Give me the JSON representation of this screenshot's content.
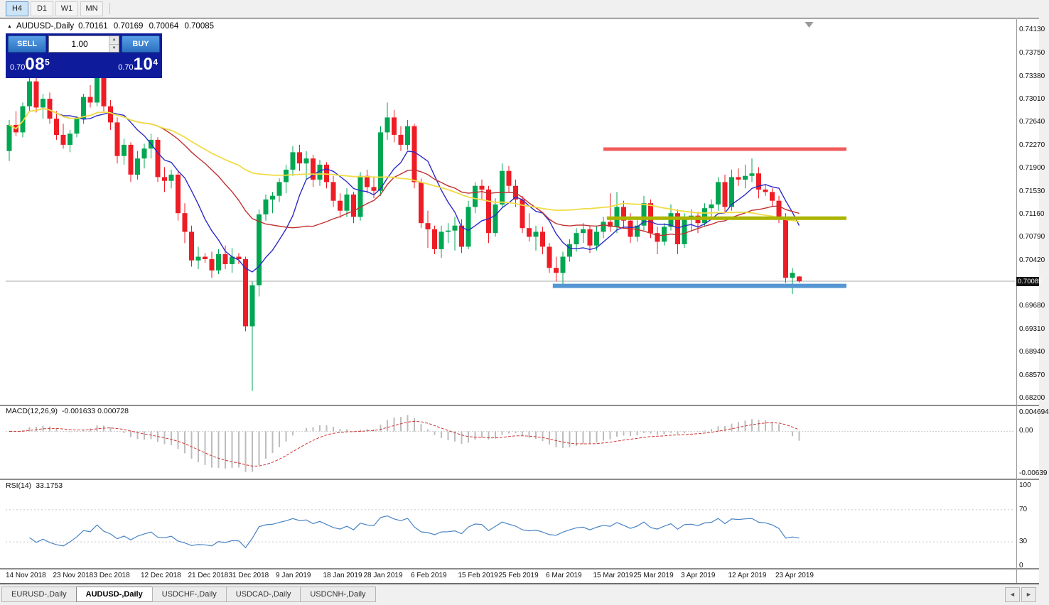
{
  "toolbar": {
    "timeframes": [
      {
        "label": "H4",
        "active": true
      },
      {
        "label": "D1",
        "active": false
      },
      {
        "label": "W1",
        "active": false
      },
      {
        "label": "MN",
        "active": false
      }
    ]
  },
  "chart": {
    "title": "AUDUSD-,Daily",
    "open": "0.70161",
    "high": "0.70169",
    "low": "0.70064",
    "close": "0.70085"
  },
  "trade_panel": {
    "sell_label": "SELL",
    "buy_label": "BUY",
    "volume": "1.00",
    "spinner_up": "▲",
    "spinner_down": "▼",
    "sell_price": {
      "prefix": "0.70",
      "big": "08",
      "sup": "5"
    },
    "buy_price": {
      "prefix": "0.70",
      "big": "10",
      "sup": "4"
    }
  },
  "chart_data": {
    "type": "candlestick",
    "symbol": "AUDUSD-",
    "timeframe": "Daily",
    "current_price": 0.70085,
    "colors": {
      "bull": "#00a651",
      "bear": "#ee1c25"
    },
    "price_scale": {
      "top_price": 0.74267,
      "bottom_price": 0.68143,
      "ticks": [
        "0.74130",
        "0.73750",
        "0.73380",
        "0.73010",
        "0.72640",
        "0.72270",
        "0.71900",
        "0.71530",
        "0.71160",
        "0.70790",
        "0.70420",
        "0.69680",
        "0.69310",
        "0.68940",
        "0.68570",
        "0.68200"
      ]
    },
    "x_labels": [
      {
        "index": 0,
        "text": "14 Nov 2018"
      },
      {
        "index": 7,
        "text": "23 Nov 2018"
      },
      {
        "index": 13,
        "text": "3 Dec 2018"
      },
      {
        "index": 20,
        "text": "12 Dec 2018"
      },
      {
        "index": 27,
        "text": "21 Dec 2018"
      },
      {
        "index": 33,
        "text": "31 Dec 2018"
      },
      {
        "index": 40,
        "text": "9 Jan 2019"
      },
      {
        "index": 47,
        "text": "18 Jan 2019"
      },
      {
        "index": 53,
        "text": "28 Jan 2019"
      },
      {
        "index": 60,
        "text": "6 Feb 2019"
      },
      {
        "index": 67,
        "text": "15 Feb 2019"
      },
      {
        "index": 73,
        "text": "25 Feb 2019"
      },
      {
        "index": 80,
        "text": "6 Mar 2019"
      },
      {
        "index": 87,
        "text": "15 Mar 2019"
      },
      {
        "index": 93,
        "text": "25 Mar 2019"
      },
      {
        "index": 100,
        "text": "3 Apr 2019"
      },
      {
        "index": 107,
        "text": "12 Apr 2019"
      },
      {
        "index": 114,
        "text": "23 Apr 2019"
      }
    ],
    "candles": [
      [
        0.7218,
        0.7268,
        0.7202,
        0.726
      ],
      [
        0.726,
        0.7282,
        0.7242,
        0.7248
      ],
      [
        0.7248,
        0.7296,
        0.724,
        0.729
      ],
      [
        0.729,
        0.7338,
        0.7282,
        0.733
      ],
      [
        0.733,
        0.7345,
        0.728,
        0.7288
      ],
      [
        0.7288,
        0.731,
        0.727,
        0.7302
      ],
      [
        0.7302,
        0.7312,
        0.7262,
        0.727
      ],
      [
        0.727,
        0.7282,
        0.7236,
        0.7244
      ],
      [
        0.7244,
        0.7262,
        0.7222,
        0.7228
      ],
      [
        0.7228,
        0.7252,
        0.7216,
        0.7246
      ],
      [
        0.7246,
        0.7274,
        0.724,
        0.727
      ],
      [
        0.727,
        0.731,
        0.7262,
        0.7305
      ],
      [
        0.7305,
        0.7324,
        0.7288,
        0.7296
      ],
      [
        0.7296,
        0.7355,
        0.729,
        0.734
      ],
      [
        0.734,
        0.7348,
        0.7282,
        0.729
      ],
      [
        0.729,
        0.73,
        0.7252,
        0.7264
      ],
      [
        0.7264,
        0.7272,
        0.7198,
        0.721
      ],
      [
        0.721,
        0.7238,
        0.7196,
        0.7228
      ],
      [
        0.7228,
        0.7232,
        0.7168,
        0.718
      ],
      [
        0.718,
        0.7218,
        0.7172,
        0.7206
      ],
      [
        0.7206,
        0.723,
        0.719,
        0.7222
      ],
      [
        0.7222,
        0.7246,
        0.7206,
        0.7236
      ],
      [
        0.7236,
        0.724,
        0.7168,
        0.7176
      ],
      [
        0.7176,
        0.7192,
        0.7152,
        0.717
      ],
      [
        0.717,
        0.7188,
        0.7158,
        0.718
      ],
      [
        0.718,
        0.7186,
        0.7106,
        0.7118
      ],
      [
        0.7118,
        0.7134,
        0.707,
        0.7088
      ],
      [
        0.7088,
        0.7098,
        0.7032,
        0.7042
      ],
      [
        0.7042,
        0.7064,
        0.7028,
        0.7048
      ],
      [
        0.7048,
        0.7054,
        0.7038,
        0.7044
      ],
      [
        0.7044,
        0.7056,
        0.7014,
        0.7026
      ],
      [
        0.7026,
        0.706,
        0.702,
        0.7052
      ],
      [
        0.7052,
        0.7066,
        0.7028,
        0.7036
      ],
      [
        0.7036,
        0.7062,
        0.7022,
        0.7048
      ],
      [
        0.7048,
        0.7054,
        0.7036,
        0.7044
      ],
      [
        0.7044,
        0.7048,
        0.6928,
        0.6936
      ],
      [
        0.6936,
        0.7008,
        0.6832,
        0.7002
      ],
      [
        0.7002,
        0.7124,
        0.6984,
        0.7116
      ],
      [
        0.7116,
        0.7148,
        0.7106,
        0.714
      ],
      [
        0.714,
        0.7152,
        0.7118,
        0.7146
      ],
      [
        0.7146,
        0.7174,
        0.7136,
        0.7168
      ],
      [
        0.7168,
        0.7196,
        0.715,
        0.7188
      ],
      [
        0.7188,
        0.7226,
        0.7178,
        0.7216
      ],
      [
        0.7216,
        0.7228,
        0.7186,
        0.7198
      ],
      [
        0.7198,
        0.7218,
        0.7172,
        0.7206
      ],
      [
        0.7206,
        0.7212,
        0.716,
        0.7172
      ],
      [
        0.7172,
        0.7204,
        0.7162,
        0.7196
      ],
      [
        0.7196,
        0.72,
        0.7158,
        0.7168
      ],
      [
        0.7168,
        0.7178,
        0.7128,
        0.7138
      ],
      [
        0.7138,
        0.715,
        0.711,
        0.7122
      ],
      [
        0.7122,
        0.7158,
        0.7112,
        0.7148
      ],
      [
        0.7148,
        0.7152,
        0.7102,
        0.7112
      ],
      [
        0.7112,
        0.7184,
        0.7106,
        0.7178
      ],
      [
        0.7178,
        0.7188,
        0.715,
        0.716
      ],
      [
        0.716,
        0.7176,
        0.7142,
        0.7154
      ],
      [
        0.7154,
        0.7258,
        0.7146,
        0.7248
      ],
      [
        0.7248,
        0.7296,
        0.7236,
        0.7272
      ],
      [
        0.7272,
        0.7284,
        0.7232,
        0.7244
      ],
      [
        0.7244,
        0.7258,
        0.7218,
        0.7228
      ],
      [
        0.7228,
        0.7268,
        0.722,
        0.7258
      ],
      [
        0.7258,
        0.7262,
        0.7158,
        0.7168
      ],
      [
        0.7168,
        0.7174,
        0.7094,
        0.7102
      ],
      [
        0.7102,
        0.7122,
        0.7062,
        0.7092
      ],
      [
        0.7092,
        0.7098,
        0.7052,
        0.706
      ],
      [
        0.706,
        0.7098,
        0.7046,
        0.7088
      ],
      [
        0.7088,
        0.7102,
        0.707,
        0.709
      ],
      [
        0.709,
        0.7112,
        0.7058,
        0.7098
      ],
      [
        0.7098,
        0.7108,
        0.7054,
        0.7064
      ],
      [
        0.7064,
        0.7138,
        0.706,
        0.7128
      ],
      [
        0.7128,
        0.7168,
        0.7118,
        0.7162
      ],
      [
        0.7162,
        0.7172,
        0.714,
        0.7156
      ],
      [
        0.7156,
        0.7162,
        0.707,
        0.7086
      ],
      [
        0.7086,
        0.7142,
        0.708,
        0.7132
      ],
      [
        0.7132,
        0.7198,
        0.7128,
        0.7186
      ],
      [
        0.7186,
        0.7194,
        0.7152,
        0.7162
      ],
      [
        0.7162,
        0.7172,
        0.7128,
        0.714
      ],
      [
        0.714,
        0.7146,
        0.7086,
        0.7094
      ],
      [
        0.7094,
        0.7118,
        0.7072,
        0.708
      ],
      [
        0.708,
        0.7098,
        0.7058,
        0.7088
      ],
      [
        0.7088,
        0.7096,
        0.7052,
        0.7064
      ],
      [
        0.7064,
        0.707,
        0.7022,
        0.703
      ],
      [
        0.703,
        0.7048,
        0.7008,
        0.7022
      ],
      [
        0.7022,
        0.7056,
        0.7002,
        0.7048
      ],
      [
        0.7048,
        0.7076,
        0.704,
        0.7068
      ],
      [
        0.7068,
        0.7094,
        0.7056,
        0.7086
      ],
      [
        0.7086,
        0.7102,
        0.707,
        0.7092
      ],
      [
        0.7092,
        0.7098,
        0.7054,
        0.7066
      ],
      [
        0.7066,
        0.7098,
        0.7058,
        0.7088
      ],
      [
        0.7088,
        0.7112,
        0.7078,
        0.7104
      ],
      [
        0.7104,
        0.715,
        0.7088,
        0.7096
      ],
      [
        0.7096,
        0.7152,
        0.7086,
        0.7128
      ],
      [
        0.7128,
        0.7138,
        0.7094,
        0.7106
      ],
      [
        0.7106,
        0.7118,
        0.707,
        0.708
      ],
      [
        0.708,
        0.7108,
        0.7072,
        0.7098
      ],
      [
        0.7098,
        0.7146,
        0.709,
        0.7134
      ],
      [
        0.7134,
        0.714,
        0.7078,
        0.7086
      ],
      [
        0.7086,
        0.7096,
        0.7052,
        0.7072
      ],
      [
        0.7072,
        0.7102,
        0.7066,
        0.7096
      ],
      [
        0.7096,
        0.7132,
        0.709,
        0.7118
      ],
      [
        0.7118,
        0.7124,
        0.7052,
        0.7068
      ],
      [
        0.7068,
        0.7118,
        0.7062,
        0.711
      ],
      [
        0.711,
        0.7124,
        0.7088,
        0.7114
      ],
      [
        0.7114,
        0.712,
        0.7086,
        0.7102
      ],
      [
        0.7102,
        0.7134,
        0.7096,
        0.7126
      ],
      [
        0.7126,
        0.714,
        0.7112,
        0.7132
      ],
      [
        0.7132,
        0.7176,
        0.7122,
        0.7168
      ],
      [
        0.7168,
        0.718,
        0.7118,
        0.7128
      ],
      [
        0.7128,
        0.7188,
        0.7122,
        0.7176
      ],
      [
        0.7176,
        0.719,
        0.7162,
        0.7172
      ],
      [
        0.7172,
        0.7196,
        0.7158,
        0.7178
      ],
      [
        0.7178,
        0.7206,
        0.7168,
        0.7182
      ],
      [
        0.7182,
        0.7192,
        0.7142,
        0.7156
      ],
      [
        0.7156,
        0.7164,
        0.7146,
        0.7152
      ],
      [
        0.7152,
        0.7158,
        0.7128,
        0.7138
      ],
      [
        0.7138,
        0.7146,
        0.7102,
        0.7112
      ],
      [
        0.7112,
        0.7118,
        0.7006,
        0.7014
      ],
      [
        0.7014,
        0.703,
        0.6988,
        0.7022
      ],
      [
        0.70161,
        0.70169,
        0.70064,
        0.70085
      ]
    ],
    "moving_averages": [
      {
        "period": 8,
        "color": "#2b2bc8",
        "width": 1.4
      },
      {
        "period": 21,
        "color": "#c03030",
        "width": 1.4
      },
      {
        "period": 55,
        "color": "#f0dc46",
        "width": 1.8
      }
    ],
    "trend_lines": [
      {
        "price": 0.7221,
        "from_index": 88,
        "to_index": 124,
        "color": "#f15b5b",
        "width": 5
      },
      {
        "price": 0.711,
        "from_index": 88.5,
        "to_index": 124,
        "color": "#aab400",
        "width": 5
      },
      {
        "price": 0.7001,
        "from_index": 80.5,
        "to_index": 124,
        "color": "#5596d2",
        "width": 6
      }
    ],
    "indicators": {
      "macd": {
        "label": "MACD(12,26,9)",
        "values_text": "-0.001633 0.000728",
        "fast": 12,
        "slow": 26,
        "signal_period": 9,
        "scale_labels": [
          "0.004694",
          "0.00",
          "-0.00639"
        ],
        "histogram_color": "#bdbdbd",
        "signal_color": "#cf3535"
      },
      "rsi": {
        "label": "RSI(14)",
        "value_text": "33.1753",
        "period": 14,
        "levels": [
          70,
          30
        ],
        "scale_labels": [
          "100",
          "70",
          "30",
          "0"
        ],
        "line_color": "#4983c4"
      }
    }
  },
  "tabs": {
    "items": [
      {
        "label": "EURUSD-,Daily",
        "active": false
      },
      {
        "label": "AUDUSD-,Daily",
        "active": true
      },
      {
        "label": "USDCHF-,Daily",
        "active": false
      },
      {
        "label": "USDCAD-,Daily",
        "active": false
      },
      {
        "label": "USDCNH-,Daily",
        "active": false
      }
    ],
    "scroll_left": "◄",
    "scroll_right": "►"
  }
}
